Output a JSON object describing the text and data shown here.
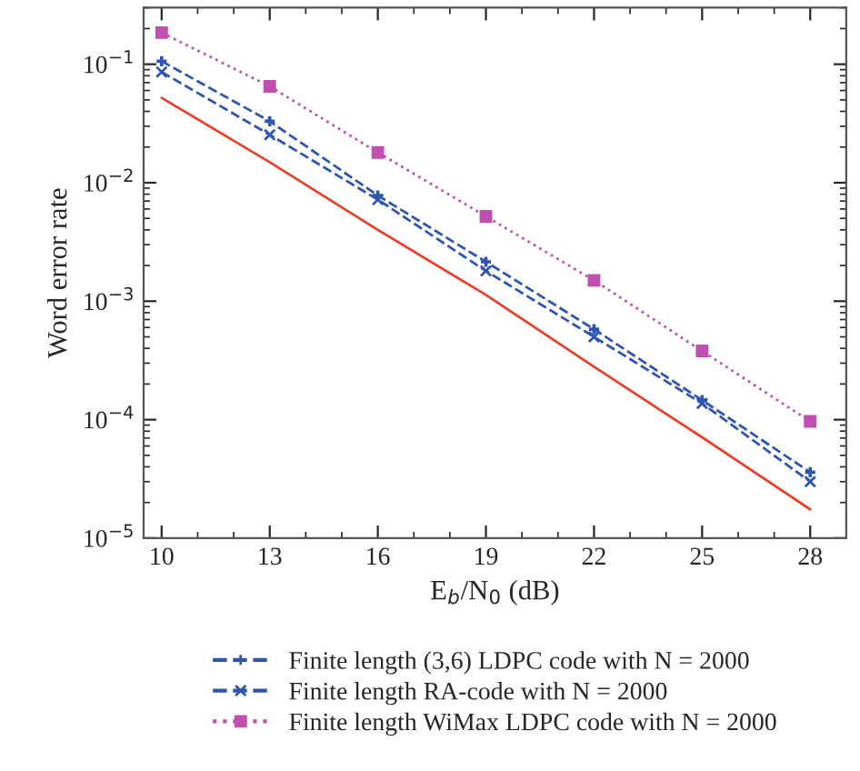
{
  "chart_data": {
    "type": "line",
    "xlabel": "E$_{b}$/N$_{0}$ (dB)",
    "ylabel": "Word error rate",
    "x": [
      10,
      13,
      16,
      19,
      22,
      25,
      28
    ],
    "series": [
      {
        "color": "#e8412c",
        "line_style": "solid",
        "marker": "none",
        "values": [
          0.052,
          0.0149,
          0.004,
          0.00113,
          0.00028,
          7.1e-05,
          1.75e-05
        ]
      },
      {
        "name": "Finite length (3,6) LDPC code with N = 2000",
        "color": "#2e55b0",
        "line_style": "dashed",
        "marker": "plus",
        "values": [
          0.106,
          0.033,
          0.0078,
          0.00215,
          0.00058,
          0.000146,
          3.6e-05
        ]
      },
      {
        "name": "Finite length RA-code with N = 2000",
        "color": "#2e55b0",
        "line_style": "dashed",
        "marker": "cross",
        "values": [
          0.086,
          0.0254,
          0.0072,
          0.0018,
          0.0005,
          0.000137,
          3e-05
        ]
      },
      {
        "name": "Finite length WiMax LDPC code with N = 2000",
        "color": "#c050b0",
        "line_style": "dotted",
        "marker": "square",
        "values": [
          0.185,
          0.065,
          0.018,
          0.0052,
          0.0015,
          0.00038,
          9.66e-05
        ]
      }
    ],
    "log": "y",
    "xlim": [
      9.5,
      29
    ],
    "xticks": [
      10,
      13,
      16,
      19,
      22,
      25,
      28
    ],
    "ylim": [
      1e-05,
      0.3
    ],
    "yticks": [
      {
        "value": 1e-05,
        "label": "10$^{−5}$"
      },
      {
        "value": 0.0001,
        "label": "10$^{−4}$"
      },
      {
        "value": 0.001,
        "label": "10$^{−3}$"
      },
      {
        "value": 0.01,
        "label": "10$^{−2}$"
      },
      {
        "value": 0.1,
        "label": "10$^{−1}$"
      }
    ],
    "grid": false,
    "legend": "bottom"
  }
}
